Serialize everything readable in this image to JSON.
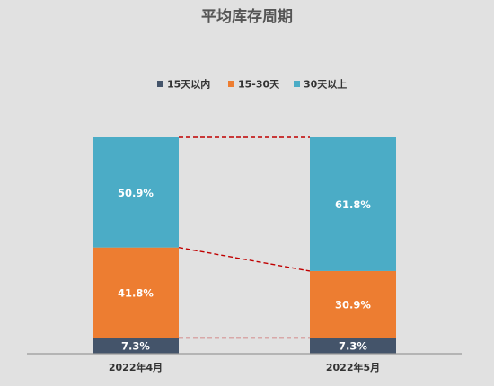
{
  "chart_data": {
    "type": "bar",
    "stacked": true,
    "normalized": true,
    "title": "平均库存周期",
    "categories": [
      "2022年4月",
      "2022年5月"
    ],
    "series": [
      {
        "name": "15天以内",
        "values": [
          7.3,
          7.3
        ],
        "labels": [
          "7.3%",
          "7.3%"
        ],
        "color": "#44546a"
      },
      {
        "name": "15-30天",
        "values": [
          41.8,
          30.9
        ],
        "labels": [
          "41.8%",
          "30.9%"
        ],
        "color": "#ed7d31"
      },
      {
        "name": "30天以上",
        "values": [
          50.9,
          61.8
        ],
        "labels": [
          "50.9%",
          "61.8%"
        ],
        "color": "#4bacc6"
      }
    ],
    "ylim": [
      0,
      100
    ],
    "series_lines": true,
    "series_line_color": "#c00000",
    "legend_position": "top",
    "grid": false
  }
}
